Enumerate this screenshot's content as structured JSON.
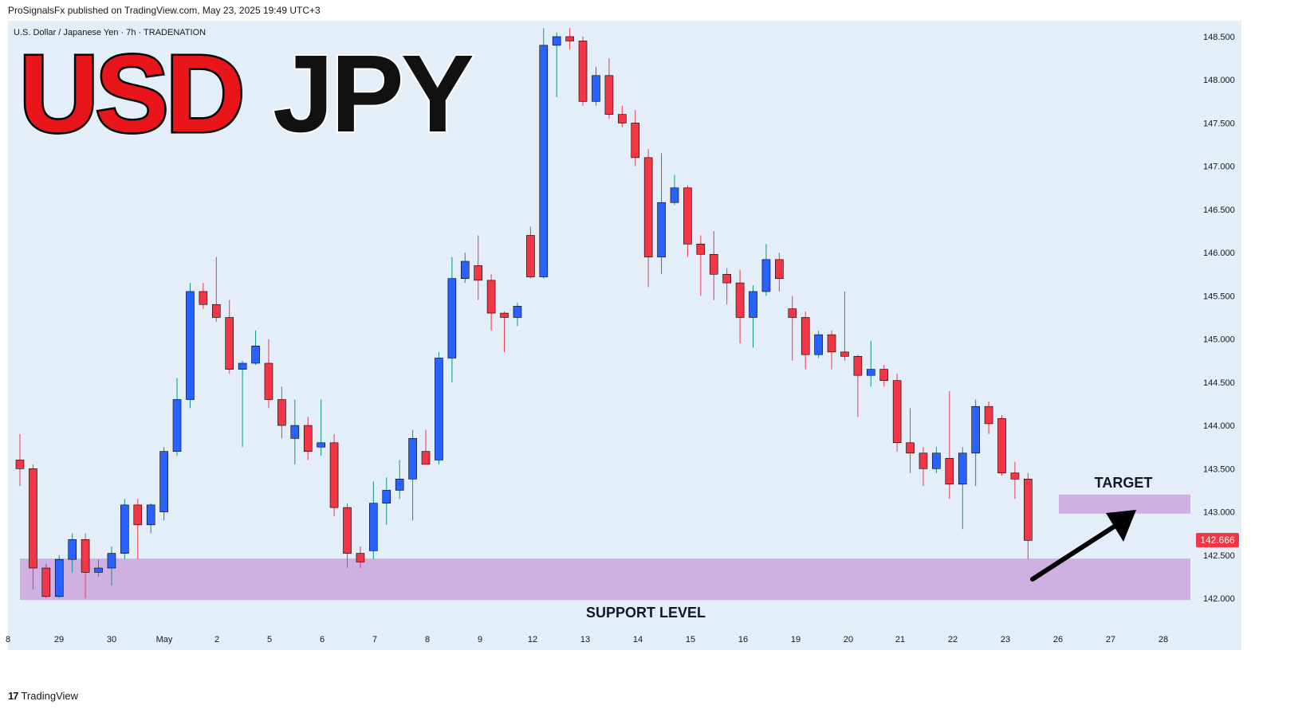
{
  "publisher_line": "ProSignalsFx published on TradingView.com, May 23, 2025 19:49 UTC+3",
  "symbol_line": "U.S. Dollar / Japanese Yen · 7h · TRADENATION",
  "title": {
    "part1": "USD",
    "part2": "JPY",
    "color1": "#e8161b",
    "color2": "#111111"
  },
  "labels": {
    "target": "TARGET",
    "support": "SUPPORT LEVEL"
  },
  "last_price": "142.666",
  "brand": "TradingView",
  "colors": {
    "background": "#e3eef9",
    "up": "#2962ff",
    "down": "#f23645",
    "zone": "#cda9e0",
    "price_tag": "#f23645"
  },
  "chart_data": {
    "type": "candlestick",
    "ylim": [
      141.7,
      148.7
    ],
    "y_ticks": [
      "148.500",
      "148.000",
      "147.500",
      "147.000",
      "146.500",
      "146.000",
      "145.500",
      "145.000",
      "144.500",
      "144.000",
      "143.500",
      "143.000",
      "142.500",
      "142.000"
    ],
    "x_tick_labels": [
      "8",
      "29",
      "30",
      "May",
      "2",
      "5",
      "6",
      "7",
      "8",
      "9",
      "12",
      "13",
      "14",
      "15",
      "16",
      "19",
      "20",
      "21",
      "22",
      "23",
      "26",
      "27",
      "28"
    ],
    "zones": [
      {
        "name": "support",
        "from": 141.98,
        "to": 142.46
      },
      {
        "name": "target",
        "from": 142.98,
        "to": 143.2
      }
    ],
    "arrow": {
      "from": [
        142.15
      ],
      "to": [
        143.05
      ],
      "direction": "up"
    },
    "candles": [
      [
        143.6,
        143.9,
        143.3,
        143.5
      ],
      [
        143.5,
        143.55,
        142.1,
        142.35
      ],
      [
        142.35,
        142.4,
        142.0,
        142.02
      ],
      [
        142.02,
        142.5,
        142.0,
        142.45
      ],
      [
        142.45,
        142.75,
        142.3,
        142.68
      ],
      [
        142.68,
        142.75,
        142.0,
        142.3
      ],
      [
        142.3,
        142.45,
        142.25,
        142.35
      ],
      [
        142.35,
        142.6,
        142.15,
        142.52
      ],
      [
        142.52,
        143.15,
        142.45,
        143.08
      ],
      [
        143.08,
        143.15,
        142.45,
        142.85
      ],
      [
        142.85,
        143.1,
        142.75,
        143.08
      ],
      [
        143.0,
        143.75,
        142.9,
        143.7
      ],
      [
        143.7,
        144.55,
        143.65,
        144.3
      ],
      [
        144.3,
        145.65,
        144.2,
        145.55
      ],
      [
        145.55,
        145.65,
        145.35,
        145.4
      ],
      [
        145.4,
        145.95,
        145.2,
        145.25
      ],
      [
        145.25,
        145.45,
        144.6,
        144.65
      ],
      [
        144.65,
        144.75,
        143.75,
        144.72
      ],
      [
        144.72,
        145.1,
        144.7,
        144.92
      ],
      [
        144.72,
        145.0,
        144.2,
        144.3
      ],
      [
        144.3,
        144.45,
        143.85,
        144.0
      ],
      [
        143.85,
        144.3,
        143.55,
        144.0
      ],
      [
        144.0,
        144.1,
        143.6,
        143.7
      ],
      [
        143.75,
        144.3,
        143.65,
        143.8
      ],
      [
        143.8,
        143.9,
        142.95,
        143.05
      ],
      [
        143.05,
        143.1,
        142.35,
        142.52
      ],
      [
        142.52,
        142.6,
        142.35,
        142.42
      ],
      [
        142.55,
        143.35,
        142.45,
        143.1
      ],
      [
        143.1,
        143.4,
        142.85,
        143.25
      ],
      [
        143.25,
        143.6,
        143.15,
        143.38
      ],
      [
        143.38,
        143.95,
        142.9,
        143.85
      ],
      [
        143.7,
        143.95,
        143.55,
        143.55
      ],
      [
        143.6,
        144.85,
        143.55,
        144.78
      ],
      [
        144.78,
        145.95,
        144.5,
        145.7
      ],
      [
        145.7,
        146.0,
        145.65,
        145.9
      ],
      [
        145.85,
        146.2,
        145.45,
        145.68
      ],
      [
        145.68,
        145.75,
        145.1,
        145.3
      ],
      [
        145.3,
        145.32,
        144.85,
        145.25
      ],
      [
        145.25,
        145.42,
        145.15,
        145.38
      ],
      [
        146.2,
        146.3,
        145.7,
        145.72
      ],
      [
        145.72,
        148.6,
        145.7,
        148.4
      ],
      [
        148.4,
        148.55,
        147.8,
        148.5
      ],
      [
        148.5,
        148.6,
        148.35,
        148.45
      ],
      [
        148.45,
        148.5,
        147.7,
        147.75
      ],
      [
        147.75,
        148.15,
        147.7,
        148.05
      ],
      [
        148.05,
        148.25,
        147.55,
        147.6
      ],
      [
        147.6,
        147.7,
        147.45,
        147.5
      ],
      [
        147.5,
        147.65,
        147.0,
        147.1
      ],
      [
        147.1,
        147.2,
        145.6,
        145.95
      ],
      [
        145.95,
        147.15,
        145.75,
        146.58
      ],
      [
        146.58,
        146.9,
        146.55,
        146.75
      ],
      [
        146.75,
        146.78,
        145.95,
        146.1
      ],
      [
        146.1,
        146.2,
        145.5,
        145.98
      ],
      [
        145.98,
        146.25,
        145.45,
        145.75
      ],
      [
        145.75,
        145.82,
        145.4,
        145.65
      ],
      [
        145.65,
        145.8,
        144.95,
        145.25
      ],
      [
        145.25,
        145.62,
        144.9,
        145.55
      ],
      [
        145.55,
        146.1,
        145.5,
        145.92
      ],
      [
        145.92,
        146.0,
        145.55,
        145.7
      ],
      [
        145.35,
        145.5,
        144.75,
        145.25
      ],
      [
        145.25,
        145.32,
        144.65,
        144.82
      ],
      [
        144.82,
        145.1,
        144.78,
        145.05
      ],
      [
        145.05,
        145.1,
        144.65,
        144.85
      ],
      [
        144.85,
        145.55,
        144.75,
        144.8
      ],
      [
        144.8,
        144.82,
        144.1,
        144.58
      ],
      [
        144.58,
        144.98,
        144.45,
        144.65
      ],
      [
        144.65,
        144.7,
        144.45,
        144.52
      ],
      [
        144.52,
        144.6,
        143.7,
        143.8
      ],
      [
        143.8,
        144.2,
        143.45,
        143.68
      ],
      [
        143.68,
        143.75,
        143.3,
        143.5
      ],
      [
        143.5,
        143.75,
        143.45,
        143.68
      ],
      [
        143.62,
        144.4,
        143.15,
        143.32
      ],
      [
        143.32,
        143.75,
        142.8,
        143.68
      ],
      [
        143.68,
        144.3,
        143.3,
        144.22
      ],
      [
        144.22,
        144.28,
        143.9,
        144.02
      ],
      [
        144.08,
        144.12,
        143.42,
        143.45
      ],
      [
        143.45,
        143.58,
        143.15,
        143.38
      ],
      [
        143.38,
        143.45,
        142.45,
        142.67
      ]
    ]
  }
}
